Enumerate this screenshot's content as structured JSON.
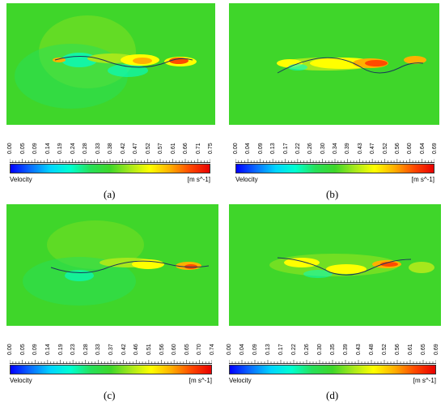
{
  "figure": {
    "panels": [
      {
        "caption": "(a)",
        "legend": {
          "variable": "Velocity",
          "unit": "[m s^-1]",
          "ticks": [
            "0.00",
            "0.05",
            "0.09",
            "0.14",
            "0.19",
            "0.24",
            "0.28",
            "0.33",
            "0.38",
            "0.42",
            "0.47",
            "0.52",
            "0.57",
            "0.61",
            "0.66",
            "0.71",
            "0.75"
          ]
        }
      },
      {
        "caption": "(b)",
        "legend": {
          "variable": "Velocity",
          "unit": "[m s^-1]",
          "ticks": [
            "0.00",
            "0.04",
            "0.09",
            "0.13",
            "0.17",
            "0.22",
            "0.26",
            "0.30",
            "0.34",
            "0.39",
            "0.43",
            "0.47",
            "0.52",
            "0.56",
            "0.60",
            "0.64",
            "0.69"
          ]
        }
      },
      {
        "caption": "(c)",
        "legend": {
          "variable": "Velocity",
          "unit": "[m s^-1]",
          "ticks": [
            "0.00",
            "0.05",
            "0.09",
            "0.14",
            "0.19",
            "0.23",
            "0.28",
            "0.33",
            "0.37",
            "0.42",
            "0.46",
            "0.51",
            "0.56",
            "0.60",
            "0.65",
            "0.70",
            "0.74"
          ]
        }
      },
      {
        "caption": "(d)",
        "legend": {
          "variable": "Velocity",
          "unit": "[m s^-1]",
          "ticks": [
            "0.00",
            "0.04",
            "0.09",
            "0.13",
            "0.17",
            "0.22",
            "0.26",
            "0.30",
            "0.35",
            "0.39",
            "0.43",
            "0.48",
            "0.52",
            "0.56",
            "0.61",
            "0.65",
            "0.69"
          ]
        }
      }
    ],
    "colors": {
      "field_background": "#3fd62a",
      "colormap": [
        "#0000ff",
        "#0a6cff",
        "#00d4ff",
        "#00ffd0",
        "#27e05a",
        "#3fd62a",
        "#a6e81c",
        "#ffff00",
        "#ffb000",
        "#ff4a00",
        "#e80000"
      ]
    }
  }
}
